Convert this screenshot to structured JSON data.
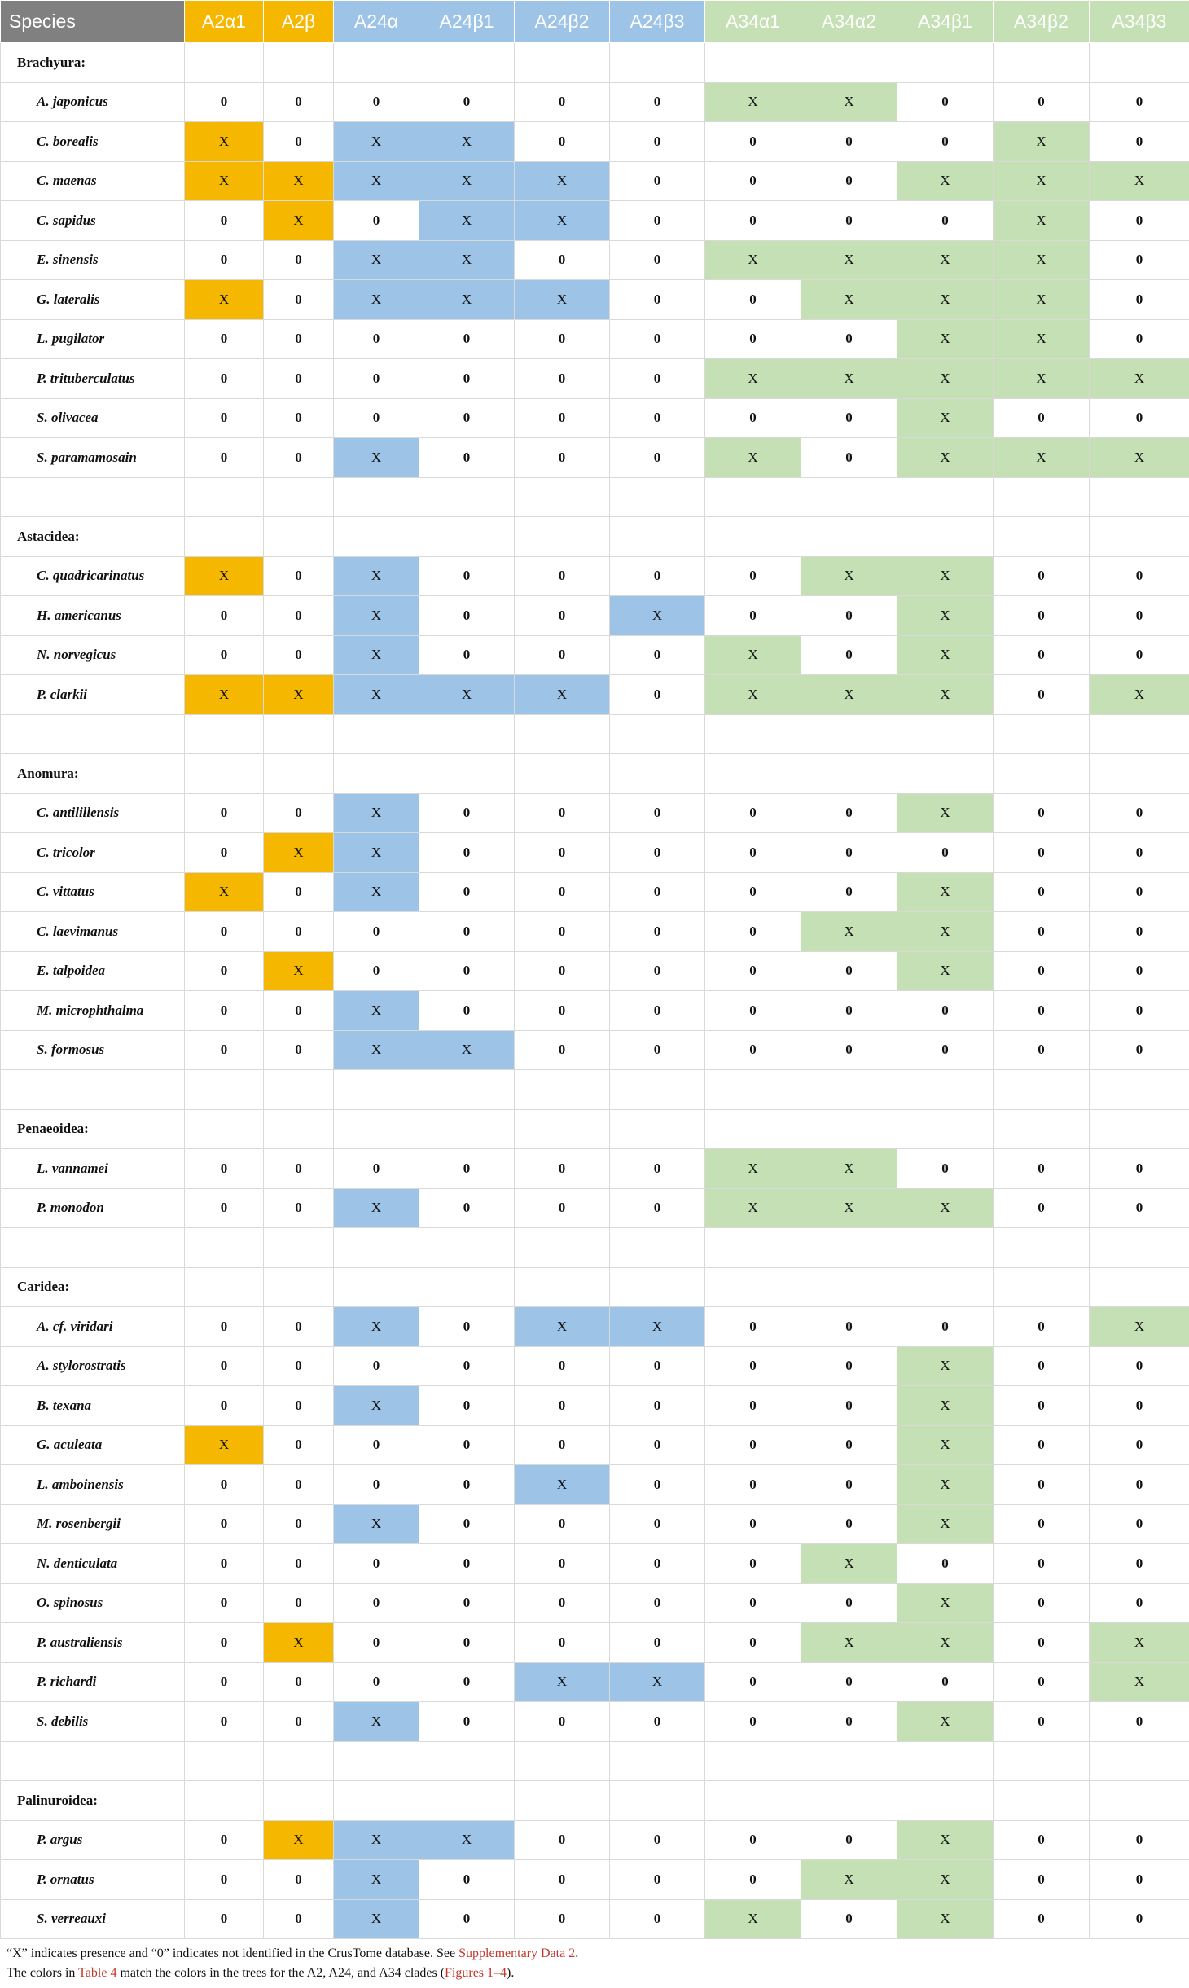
{
  "colors": {
    "A2": "#f5b700",
    "A24": "#9dc3e6",
    "A34": "#c5e0b4",
    "header_species": "#808080",
    "link": "#c0392b"
  },
  "header": {
    "species": "Species",
    "columns": [
      "A2α1",
      "A2β",
      "A24α",
      "A24β1",
      "A24β2",
      "A24β3",
      "A34α1",
      "A34α2",
      "A34β1",
      "A34β2",
      "A34β3"
    ],
    "column_groups": [
      "A2",
      "A2",
      "A24",
      "A24",
      "A24",
      "A24",
      "A34",
      "A34",
      "A34",
      "A34",
      "A34"
    ]
  },
  "groups": [
    {
      "name": "Brachyura:",
      "rows": [
        {
          "species": "A. japonicus",
          "values": [
            "0",
            "0",
            "0",
            "0",
            "0",
            "0",
            "X",
            "X",
            "0",
            "0",
            "0"
          ]
        },
        {
          "species": "C. borealis",
          "values": [
            "X",
            "0",
            "X",
            "X",
            "0",
            "0",
            "0",
            "0",
            "0",
            "X",
            "0"
          ]
        },
        {
          "species": "C. maenas",
          "values": [
            "X",
            "X",
            "X",
            "X",
            "X",
            "0",
            "0",
            "0",
            "X",
            "X",
            "X"
          ]
        },
        {
          "species": "C. sapidus",
          "values": [
            "0",
            "X",
            "0",
            "X",
            "X",
            "0",
            "0",
            "0",
            "0",
            "X",
            "0"
          ]
        },
        {
          "species": "E. sinensis",
          "values": [
            "0",
            "0",
            "X",
            "X",
            "0",
            "0",
            "X",
            "X",
            "X",
            "X",
            "0"
          ]
        },
        {
          "species": "G. lateralis",
          "values": [
            "X",
            "0",
            "X",
            "X",
            "X",
            "0",
            "0",
            "X",
            "X",
            "X",
            "0"
          ]
        },
        {
          "species": "L. pugilator",
          "values": [
            "0",
            "0",
            "0",
            "0",
            "0",
            "0",
            "0",
            "0",
            "X",
            "X",
            "0"
          ]
        },
        {
          "species": "P. trituberculatus",
          "values": [
            "0",
            "0",
            "0",
            "0",
            "0",
            "0",
            "X",
            "X",
            "X",
            "X",
            "X"
          ]
        },
        {
          "species": "S. olivacea",
          "values": [
            "0",
            "0",
            "0",
            "0",
            "0",
            "0",
            "0",
            "0",
            "X",
            "0",
            "0"
          ]
        },
        {
          "species": "S. paramamosain",
          "values": [
            "0",
            "0",
            "X",
            "0",
            "0",
            "0",
            "X",
            "0",
            "X",
            "X",
            "X"
          ]
        }
      ]
    },
    {
      "name": "Astacidea:",
      "rows": [
        {
          "species": "C. quadricarinatus",
          "values": [
            "X",
            "0",
            "X",
            "0",
            "0",
            "0",
            "0",
            "X",
            "X",
            "0",
            "0"
          ]
        },
        {
          "species": "H. americanus",
          "values": [
            "0",
            "0",
            "X",
            "0",
            "0",
            "X",
            "0",
            "0",
            "X",
            "0",
            "0"
          ]
        },
        {
          "species": "N. norvegicus",
          "values": [
            "0",
            "0",
            "X",
            "0",
            "0",
            "0",
            "X",
            "0",
            "X",
            "0",
            "0"
          ]
        },
        {
          "species": "P. clarkii",
          "values": [
            "X",
            "X",
            "X",
            "X",
            "X",
            "0",
            "X",
            "X",
            "X",
            "0",
            "X"
          ]
        }
      ]
    },
    {
      "name": "Anomura:",
      "rows": [
        {
          "species": "C. antilillensis",
          "values": [
            "0",
            "0",
            "X",
            "0",
            "0",
            "0",
            "0",
            "0",
            "X",
            "0",
            "0"
          ]
        },
        {
          "species": "C. tricolor",
          "values": [
            "0",
            "X",
            "X",
            "0",
            "0",
            "0",
            "0",
            "0",
            "0",
            "0",
            "0"
          ]
        },
        {
          "species": "C. vittatus",
          "values": [
            "X",
            "0",
            "X",
            "0",
            "0",
            "0",
            "0",
            "0",
            "X",
            "0",
            "0"
          ]
        },
        {
          "species": "C. laevimanus",
          "values": [
            "0",
            "0",
            "0",
            "0",
            "0",
            "0",
            "0",
            "X",
            "X",
            "0",
            "0"
          ]
        },
        {
          "species": "E. talpoidea",
          "values": [
            "0",
            "X",
            "0",
            "0",
            "0",
            "0",
            "0",
            "0",
            "X",
            "0",
            "0"
          ]
        },
        {
          "species": "M. microphthalma",
          "values": [
            "0",
            "0",
            "X",
            "0",
            "0",
            "0",
            "0",
            "0",
            "0",
            "0",
            "0"
          ]
        },
        {
          "species": "S. formosus",
          "values": [
            "0",
            "0",
            "X",
            "X",
            "0",
            "0",
            "0",
            "0",
            "0",
            "0",
            "0"
          ]
        }
      ]
    },
    {
      "name": "Penaeoidea:",
      "rows": [
        {
          "species": "L. vannamei",
          "values": [
            "0",
            "0",
            "0",
            "0",
            "0",
            "0",
            "X",
            "X",
            "0",
            "0",
            "0"
          ]
        },
        {
          "species": "P. monodon",
          "values": [
            "0",
            "0",
            "X",
            "0",
            "0",
            "0",
            "X",
            "X",
            "X",
            "0",
            "0"
          ]
        }
      ]
    },
    {
      "name": "Caridea:",
      "rows": [
        {
          "species": "A. cf. viridari",
          "values": [
            "0",
            "0",
            "X",
            "0",
            "X",
            "X",
            "0",
            "0",
            "0",
            "0",
            "X"
          ]
        },
        {
          "species": "A. stylorostratis",
          "values": [
            "0",
            "0",
            "0",
            "0",
            "0",
            "0",
            "0",
            "0",
            "X",
            "0",
            "0"
          ]
        },
        {
          "species": "B. texana",
          "values": [
            "0",
            "0",
            "X",
            "0",
            "0",
            "0",
            "0",
            "0",
            "X",
            "0",
            "0"
          ]
        },
        {
          "species": "G. aculeata",
          "values": [
            "X",
            "0",
            "0",
            "0",
            "0",
            "0",
            "0",
            "0",
            "X",
            "0",
            "0"
          ]
        },
        {
          "species": "L. amboinensis",
          "values": [
            "0",
            "0",
            "0",
            "0",
            "X",
            "0",
            "0",
            "0",
            "X",
            "0",
            "0"
          ]
        },
        {
          "species": "M. rosenbergii",
          "values": [
            "0",
            "0",
            "X",
            "0",
            "0",
            "0",
            "0",
            "0",
            "X",
            "0",
            "0"
          ]
        },
        {
          "species": "N. denticulata",
          "values": [
            "0",
            "0",
            "0",
            "0",
            "0",
            "0",
            "0",
            "X",
            "0",
            "0",
            "0"
          ]
        },
        {
          "species": "O. spinosus",
          "values": [
            "0",
            "0",
            "0",
            "0",
            "0",
            "0",
            "0",
            "0",
            "X",
            "0",
            "0"
          ]
        },
        {
          "species": "P. australiensis",
          "values": [
            "0",
            "X",
            "0",
            "0",
            "0",
            "0",
            "0",
            "X",
            "X",
            "0",
            "X"
          ]
        },
        {
          "species": "P. richardi",
          "values": [
            "0",
            "0",
            "0",
            "0",
            "X",
            "X",
            "0",
            "0",
            "0",
            "0",
            "X"
          ]
        },
        {
          "species": "S. debilis",
          "values": [
            "0",
            "0",
            "X",
            "0",
            "0",
            "0",
            "0",
            "0",
            "X",
            "0",
            "0"
          ]
        }
      ]
    },
    {
      "name": "Palinuroidea:",
      "rows": [
        {
          "species": "P. argus",
          "values": [
            "0",
            "X",
            "X",
            "X",
            "0",
            "0",
            "0",
            "0",
            "X",
            "0",
            "0"
          ]
        },
        {
          "species": "P. ornatus",
          "values": [
            "0",
            "0",
            "X",
            "0",
            "0",
            "0",
            "0",
            "X",
            "X",
            "0",
            "0"
          ]
        },
        {
          "species": "S. verreauxi",
          "values": [
            "0",
            "0",
            "X",
            "0",
            "0",
            "0",
            "X",
            "0",
            "X",
            "0",
            "0"
          ]
        }
      ]
    }
  ],
  "footnote": {
    "line1_text": "“X” indicates presence and “0” indicates not identified in the CrusTome database. See ",
    "line1_link": "Supplementary Data 2",
    "line1_end": ".",
    "line2_text_a": "The colors in ",
    "line2_link_a": "Table 4",
    "line2_text_b": " match the colors in the trees for the A2, A24, and A34 clades (",
    "line2_link_b": "Figures 1–4",
    "line2_end": ")."
  }
}
